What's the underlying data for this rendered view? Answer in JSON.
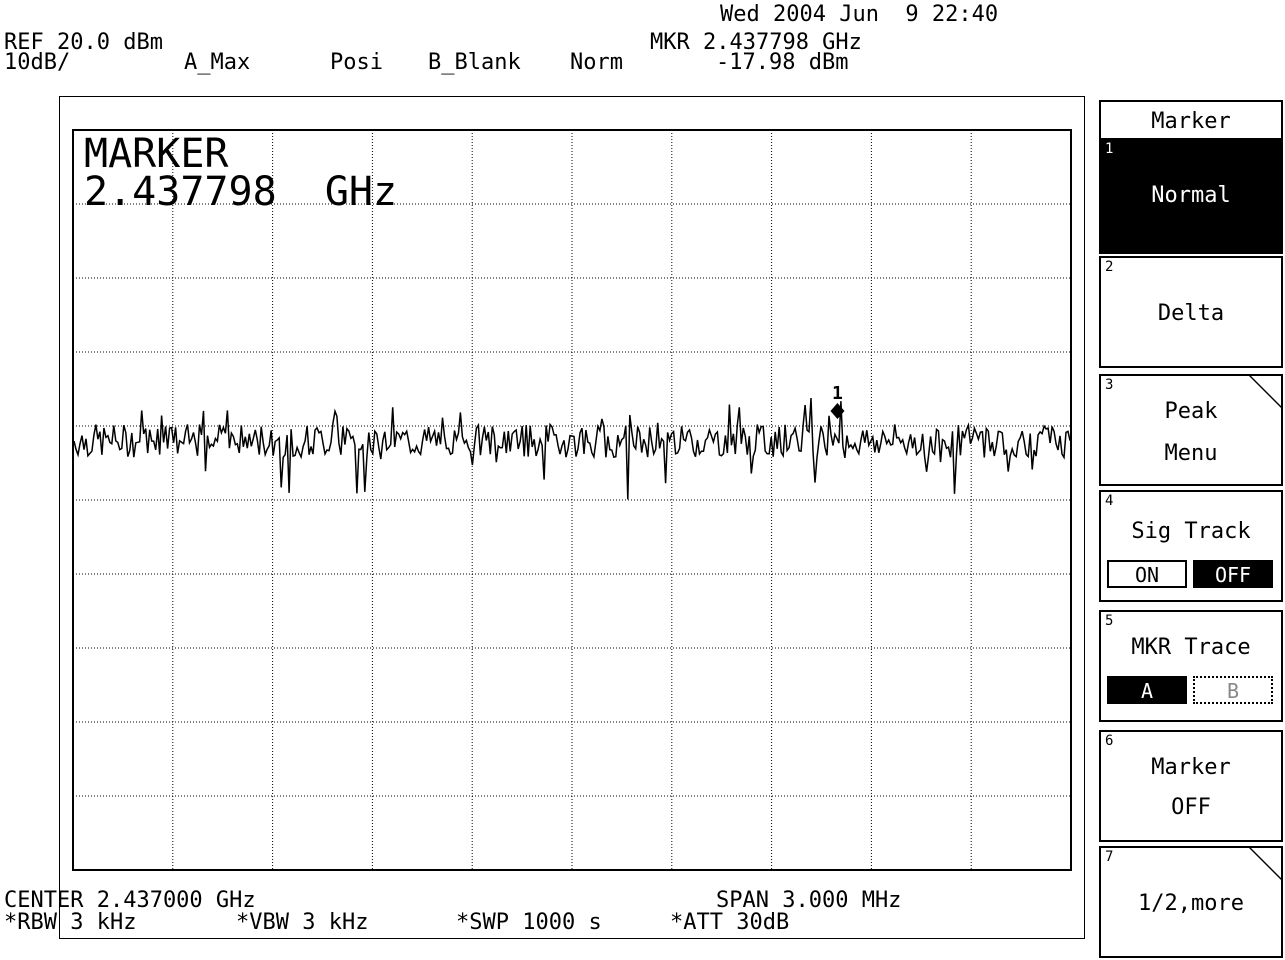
{
  "header": {
    "datetime": "Wed 2004 Jun  9 22:40",
    "ref_level": "REF 20.0 dBm",
    "scale": "10dB/",
    "trace_a": "A_Max",
    "detector": "Posi",
    "trace_b": "B_Blank",
    "mode": "Norm",
    "marker_freq": "MKR 2.437798 GHz",
    "marker_level": "-17.98 dBm"
  },
  "display": {
    "marker_title": "MARKER",
    "marker_value": "2.437798  GHz",
    "marker_label": "1"
  },
  "footer": {
    "center": "CENTER 2.437000 GHz",
    "span": "SPAN 3.000 MHz",
    "rbw": "*RBW 3 kHz",
    "vbw": "*VBW 3 kHz",
    "swp": "*SWP 1000 s",
    "att": "*ATT 30dB"
  },
  "softkeys": {
    "title": "Marker",
    "k1": {
      "num": "1",
      "label": "Normal"
    },
    "k2": {
      "num": "2",
      "label": "Delta"
    },
    "k3": {
      "num": "3",
      "label1": "Peak",
      "label2": "Menu"
    },
    "k4": {
      "num": "4",
      "label": "Sig Track",
      "on": "ON",
      "off": "OFF",
      "selected": "OFF"
    },
    "k5": {
      "num": "5",
      "label": "MKR Trace",
      "a": "A",
      "b": "B",
      "selected": "A"
    },
    "k6": {
      "num": "6",
      "label1": "Marker",
      "label2": "OFF"
    },
    "k7": {
      "num": "7",
      "label": "1/2,more"
    }
  },
  "chart_data": {
    "type": "line",
    "x_center_ghz": 2.437,
    "span_mhz": 3.0,
    "ref_level_dbm": 20.0,
    "db_per_div": 10,
    "grid_divisions": {
      "x": 10,
      "y": 10
    },
    "grid": "dotted",
    "series": [
      {
        "trace": "A_Max",
        "noise_floor_dbm": -22,
        "marker": {
          "x_ghz": 2.437798,
          "y_dbm": -17.98
        }
      }
    ]
  }
}
